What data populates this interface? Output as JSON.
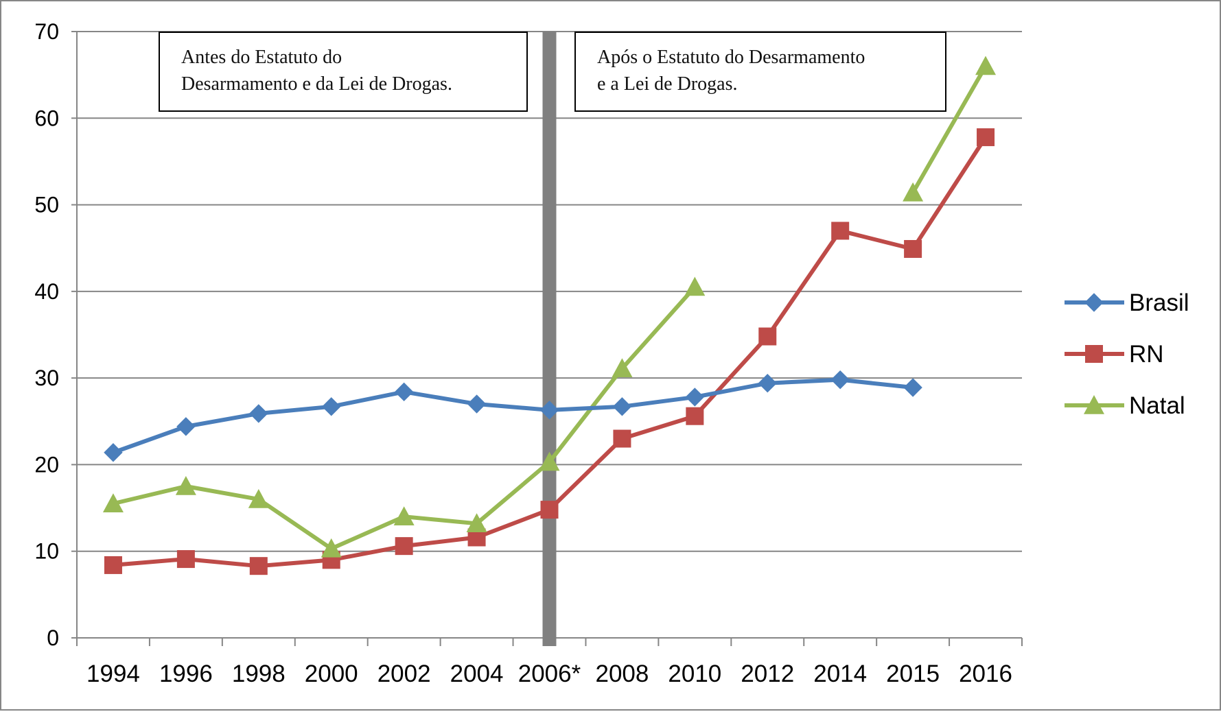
{
  "chart_data": {
    "type": "line",
    "categories": [
      "1994",
      "1996",
      "1998",
      "2000",
      "2002",
      "2004",
      "2006*",
      "2008",
      "2010",
      "2012",
      "2014",
      "2015",
      "2016"
    ],
    "ylim": [
      0,
      70
    ],
    "yticks": [
      0,
      10,
      20,
      30,
      40,
      50,
      60,
      70
    ],
    "grid": true,
    "legend_position": "right",
    "series": [
      {
        "name": "Brasil",
        "color": "#4A7EBB",
        "marker": "diamond",
        "values": [
          21.4,
          24.4,
          25.9,
          26.7,
          28.4,
          27.0,
          26.3,
          26.7,
          27.8,
          29.4,
          29.8,
          28.9,
          null
        ]
      },
      {
        "name": "RN",
        "color": "#BE4B48",
        "marker": "square",
        "values": [
          8.4,
          9.1,
          8.3,
          9.0,
          10.6,
          11.6,
          14.8,
          23.0,
          25.6,
          34.8,
          47.0,
          44.9,
          57.8
        ]
      },
      {
        "name": "Natal",
        "color": "#98B954",
        "marker": "triangle",
        "values": [
          15.5,
          17.5,
          16.0,
          10.3,
          14.0,
          13.2,
          20.3,
          31.1,
          40.5,
          null,
          null,
          51.4,
          66.0
        ]
      }
    ],
    "divider_category": "2006*",
    "annotations": [
      {
        "lines": [
          "Antes do Estatuto do",
          "Desarmamento e da Lei de Drogas."
        ]
      },
      {
        "lines": [
          "Após o Estatuto do Desarmamento",
          "e a Lei de Drogas."
        ]
      }
    ],
    "colors": {
      "grid": "#868686",
      "divider": "#808080",
      "axis": "#868686",
      "text": "#000000"
    }
  }
}
